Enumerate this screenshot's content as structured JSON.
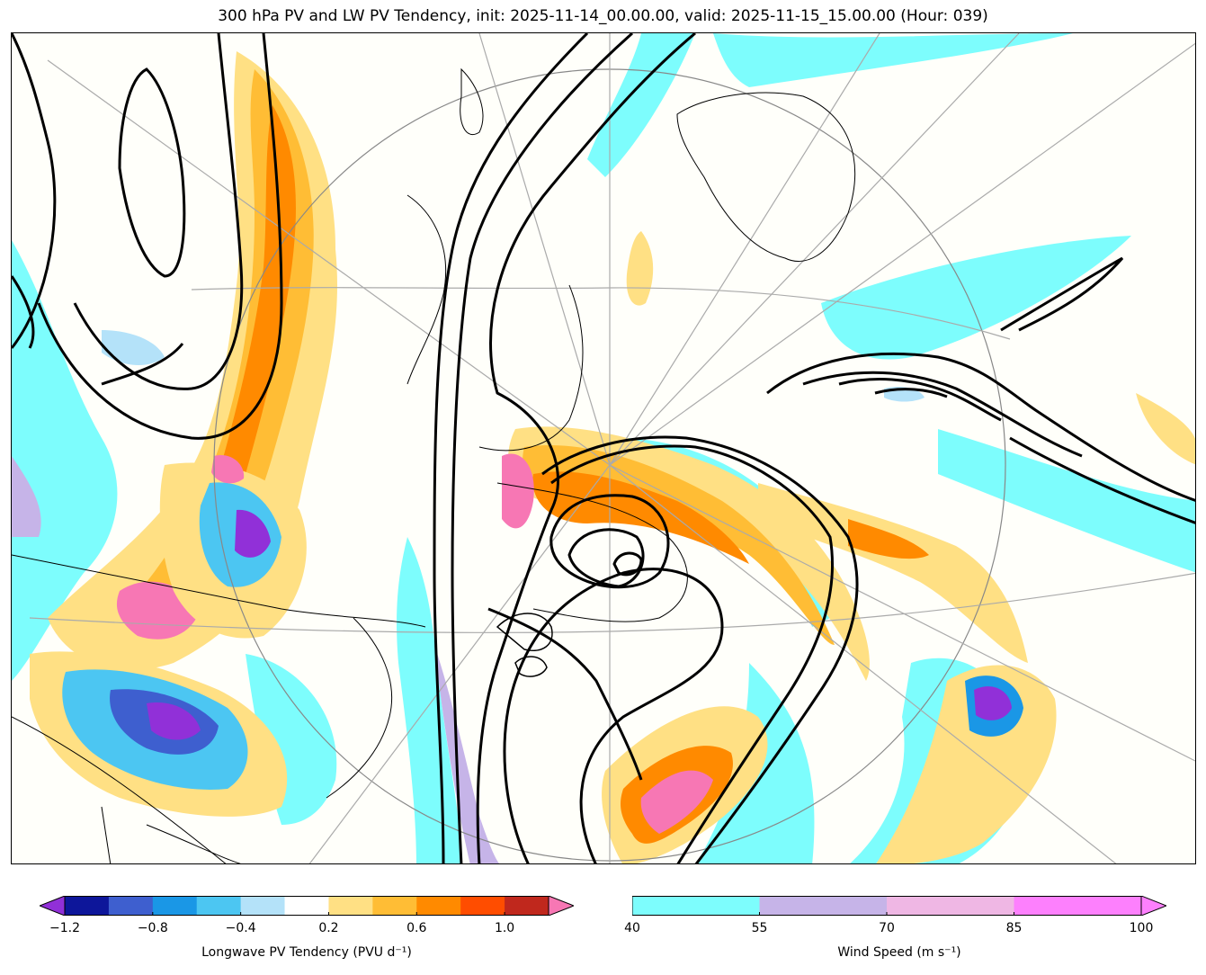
{
  "title": "300 hPa PV and LW PV Tendency, init: 2025-11-14_00.00.00, valid: 2025-11-15_15.00.00 (Hour: 039)",
  "chart_data": {
    "type": "map-contour",
    "fields": [
      {
        "name": "Potential Vorticity",
        "level_hPa": 300,
        "style": "black contours"
      },
      {
        "name": "Longwave PV Tendency",
        "units": "PVU d^-1",
        "style": "filled contours"
      },
      {
        "name": "Wind Speed",
        "units": "m s^-1",
        "style": "filled shading"
      }
    ],
    "colorbars": [
      {
        "id": "pv_tendency",
        "label": "Longwave PV Tendency (PVU d⁻¹)",
        "levels": [
          -1.2,
          -1.0,
          -0.8,
          -0.6,
          -0.4,
          -0.2,
          0.2,
          0.4,
          0.6,
          0.8,
          1.0,
          1.2
        ],
        "tick_labels": [
          "−1.2",
          "−0.8",
          "−0.4",
          "0.2",
          "0.6",
          "1.0"
        ],
        "tick_values": [
          -1.2,
          -0.8,
          -0.4,
          0.2,
          0.6,
          1.0
        ],
        "colors": [
          "#0d169a",
          "#3e5fcf",
          "#1a97e6",
          "#4cc6f2",
          "#b4e2f9",
          "#ffffff",
          "#ffe084",
          "#ffbd35",
          "#ff8a00",
          "#ff4d00",
          "#c0281d"
        ],
        "under_color": "#9130d8",
        "over_color": "#f777b4",
        "extend": "both"
      },
      {
        "id": "wind_speed",
        "label": "Wind Speed (m s⁻¹)",
        "levels": [
          40,
          55,
          70,
          85,
          100
        ],
        "tick_labels": [
          "40",
          "55",
          "70",
          "85",
          "100"
        ],
        "tick_values": [
          40,
          55,
          70,
          85,
          100
        ],
        "colors": [
          "#7dfdfd",
          "#c6b4e8",
          "#efb7e4",
          "#fd80fd"
        ],
        "over_color": "#fd80fd",
        "extend": "max"
      }
    ]
  }
}
